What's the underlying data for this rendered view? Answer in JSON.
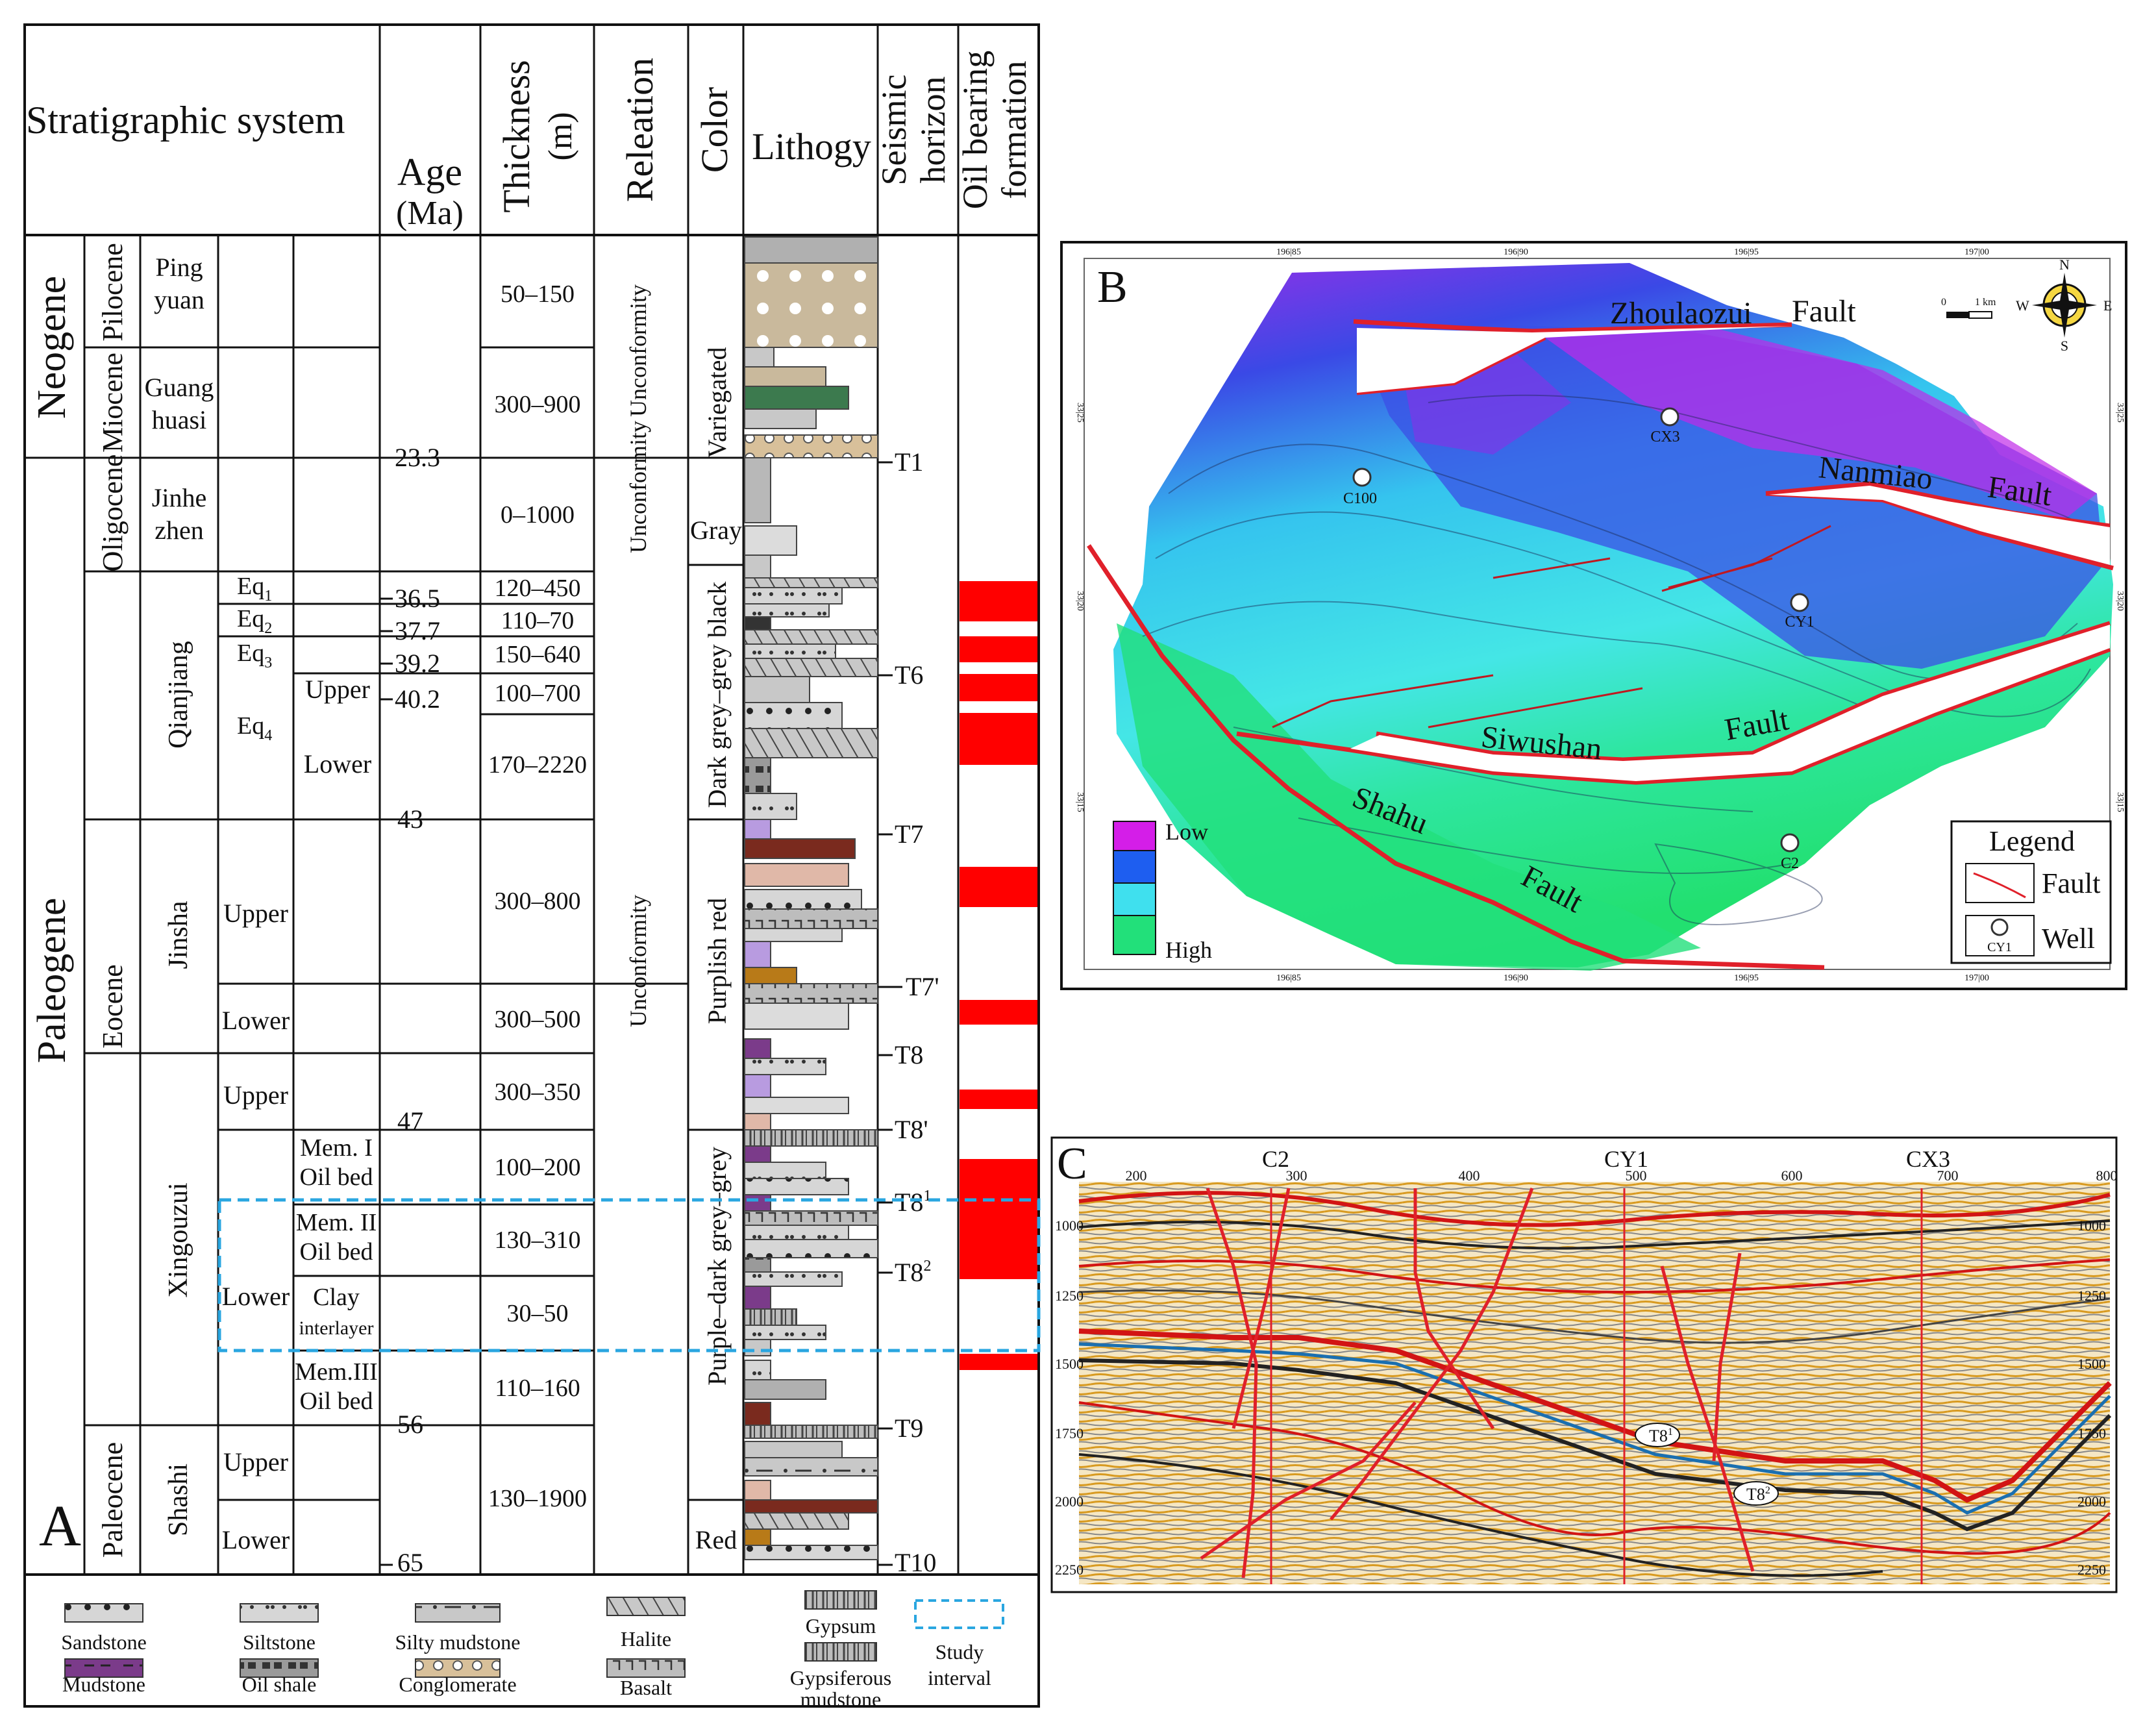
{
  "panelA": {
    "label": "A",
    "headers": {
      "strat": "Stratigraphic system",
      "age": "Age",
      "age_unit": "(Ma)",
      "thickness": "Thickness",
      "thickness_unit": "(m)",
      "relation": "Releation",
      "color": "Color",
      "lithology": "Lithogy",
      "seismic_1": "Seismic",
      "seismic_2": "horizon",
      "oil_1": "Oil bearing",
      "oil_2": "formation"
    },
    "systems": {
      "neogene": "Neogene",
      "paleogene": "Paleogene"
    },
    "series": {
      "pliocene": "Pilocene",
      "miocene": "Miocene",
      "oligocene": "Oligocene",
      "eocene": "Eocene",
      "paleocene": "Paleocene"
    },
    "formations": {
      "pingyuan_1": "Ping",
      "pingyuan_2": "yuan",
      "guanghuasi_1": "Guang",
      "guanghuasi_2": "huasi",
      "jinhezhen_1": "Jinhe",
      "jinhezhen_2": "zhen",
      "qianjiang": "Qianjiang",
      "jinsha": "Jinsha",
      "xingouzui": "Xingouzui",
      "shashi": "Shashi"
    },
    "members": {
      "eq1": "Eq",
      "eq1_sub": "1",
      "eq2": "Eq",
      "eq2_sub": "2",
      "eq3": "Eq",
      "eq3_sub": "3",
      "eq4": "Eq",
      "eq4_sub": "4"
    },
    "subunits": {
      "upper": "Upper",
      "lower": "Lower",
      "mem1_1": "Mem. I",
      "mem1_2": "Oil bed",
      "mem2_1": "Mem. II",
      "mem2_2": "Oil bed",
      "clay_1": "Clay",
      "clay_2": "interlayer",
      "mem3_1": "Mem.III",
      "mem3_2": "Oil bed"
    },
    "ages": [
      "23.3",
      "36.5",
      "37.7",
      "39.2",
      "40.2",
      "43",
      "47",
      "56",
      "65"
    ],
    "thicknesses": [
      "50–150",
      "300–900",
      "0–1000",
      "120–450",
      "110–70",
      "150–640",
      "100–700",
      "170–2220",
      "300–800",
      "300–500",
      "300–350",
      "100–200",
      "130–310",
      "30–50",
      "110–160",
      "130–1900"
    ],
    "relations": [
      "Unconformity",
      "Unconformity",
      "Unconformity",
      "Unconformity"
    ],
    "colors": [
      "Variegated",
      "Gray",
      "Dark grey–grey black",
      "Purplish red",
      "Purple–dark grey–grey",
      "Red"
    ],
    "horizons": [
      "T1",
      "T6",
      "T7",
      "T7'",
      "T8",
      "T8'",
      "T8",
      "1",
      "T8",
      "2",
      "T9",
      "T10"
    ],
    "legend": {
      "sandstone": "Sandstone",
      "siltstone": "Siltstone",
      "silty_mudstone": "Silty mudstone",
      "halite": "Halite",
      "gypsum": "Gypsum",
      "study": "Study",
      "interval": "interval",
      "mudstone": "Mudstone",
      "oil_shale": "Oil shale",
      "conglomerate": "Conglomerate",
      "basalt": "Basalt",
      "gyps_1": "Gypsiferous",
      "gyps_2": "mudstone"
    },
    "colors_hex": {
      "oil": "#ff0000",
      "study_box": "#2aa6e0"
    }
  },
  "panelB": {
    "label": "B",
    "faults": [
      "Zhoulaozui",
      "Fault",
      "Nanmiao",
      "Fault",
      "Siwushan",
      "Fault",
      "Shahu",
      "Fault"
    ],
    "wells": [
      "CX3",
      "C100",
      "CY1",
      "C2"
    ],
    "scale": {
      "zero": "0",
      "one": "1 km"
    },
    "compass": {
      "n": "N",
      "s": "S",
      "e": "E",
      "w": "W"
    },
    "depth_legend": {
      "low": "Low",
      "high": "High"
    },
    "legend": {
      "title": "Legend",
      "fault": "Fault",
      "well": "Well",
      "well_sample": "CY1"
    },
    "grid_x": [
      "196|85",
      "196|90",
      "196|95",
      "197|00"
    ],
    "grid_y": [
      "33|25",
      "33|20",
      "33|15"
    ],
    "colors_hex": {
      "low": "#d41ee8",
      "mid_low": "#1e5ef0",
      "mid": "#3fe0ee",
      "high": "#22e07a",
      "fault": "#e0202a"
    }
  },
  "panelC": {
    "label": "C",
    "wells": [
      "C2",
      "CY1",
      "CX3"
    ],
    "x_ticks": [
      "200",
      "300",
      "400",
      "500",
      "600",
      "700",
      "800"
    ],
    "y_ticks": [
      "1000",
      "1250",
      "1500",
      "1750",
      "2000",
      "2250"
    ],
    "horizon_labels": [
      "T8",
      "1",
      "T8",
      "2"
    ]
  }
}
